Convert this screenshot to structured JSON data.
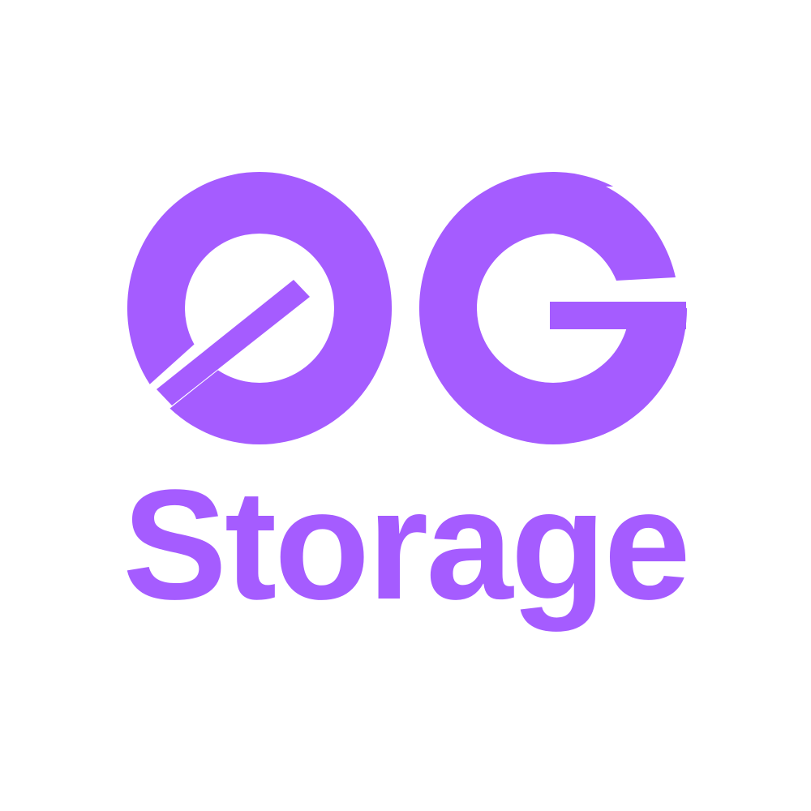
{
  "brand": {
    "logo_text": "0G",
    "wordmark": "Storage",
    "color": "#a55cff",
    "background": "#ffffff",
    "icon": "0g-logo-icon"
  }
}
